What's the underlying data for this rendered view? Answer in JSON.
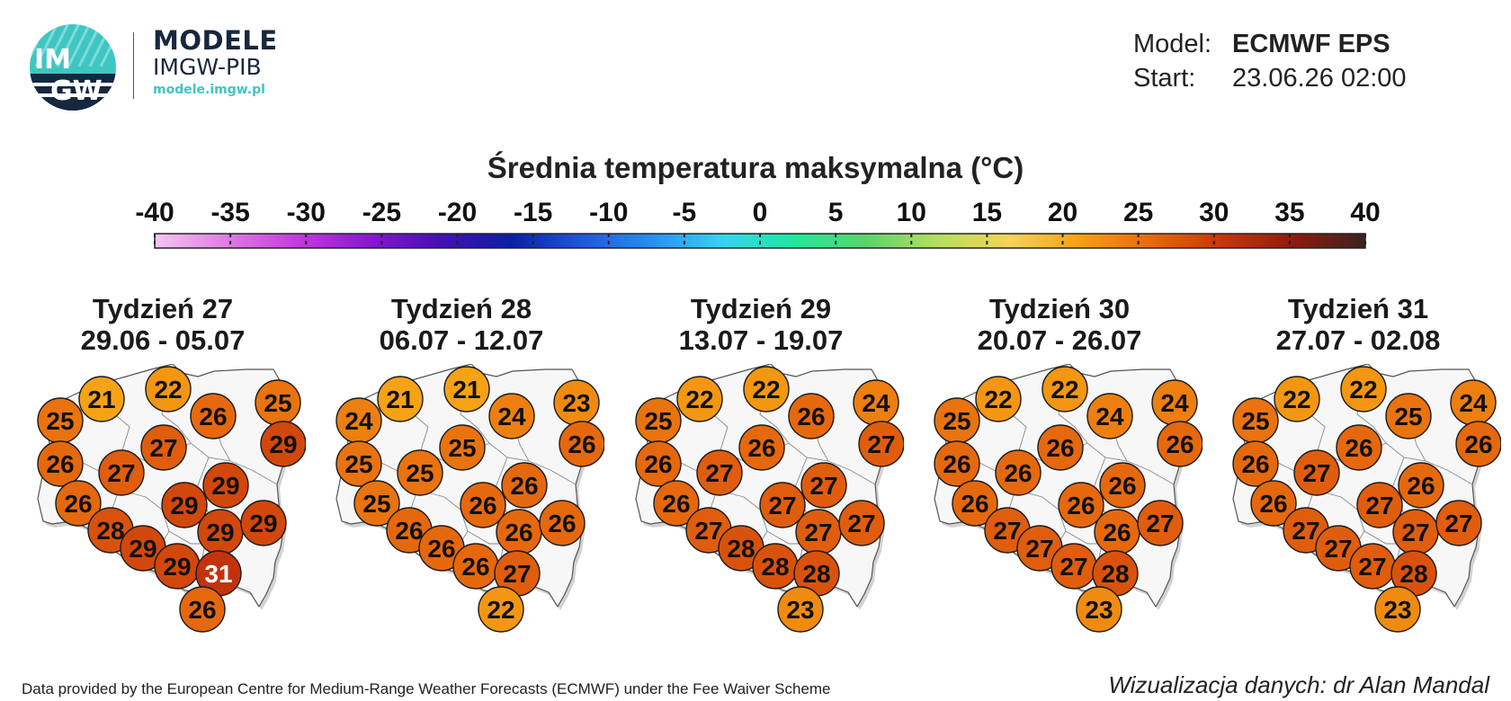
{
  "header": {
    "logo_text_top": "IM",
    "logo_text_bottom": "GW",
    "brand_title": "MODELE",
    "brand_subtitle": "IMGW-PIB",
    "brand_url": "modele.imgw.pl",
    "model_label": "Model:",
    "model_value": "ECMWF EPS",
    "start_label": "Start:",
    "start_value": "23.06.26 02:00"
  },
  "scale": {
    "title": "Średnia temperatura maksymalna (°C)",
    "ticks": [
      "-40",
      "-35",
      "-30",
      "-25",
      "-20",
      "-15",
      "-10",
      "-5",
      "0",
      "5",
      "10",
      "15",
      "20",
      "25",
      "30",
      "35",
      "40"
    ],
    "colors": [
      "#f4c6f0",
      "#e17ce5",
      "#c23cdc",
      "#8c16d2",
      "#4510b5",
      "#0a1fa6",
      "#1f57dd",
      "#2b8ff0",
      "#35d6f2",
      "#1ee89b",
      "#5cd46a",
      "#b6de62",
      "#f5d35a",
      "#f6a012",
      "#e6690d",
      "#c8350b",
      "#8b1c0e",
      "#3a231f"
    ]
  },
  "weeks": [
    {
      "title": "Tydzień 27",
      "dates": "29.06 - 05.07",
      "values": [
        25,
        21,
        22,
        26,
        25,
        29,
        26,
        27,
        27,
        26,
        29,
        29,
        28,
        29,
        29,
        29,
        29,
        31,
        26
      ]
    },
    {
      "title": "Tydzień 28",
      "dates": "06.07 - 12.07",
      "values": [
        24,
        21,
        21,
        24,
        23,
        26,
        25,
        25,
        25,
        25,
        26,
        26,
        26,
        26,
        26,
        26,
        26,
        27,
        22
      ]
    },
    {
      "title": "Tydzień 29",
      "dates": "13.07 - 19.07",
      "values": [
        25,
        22,
        22,
        26,
        24,
        27,
        26,
        27,
        26,
        26,
        27,
        27,
        27,
        28,
        27,
        27,
        28,
        28,
        23
      ]
    },
    {
      "title": "Tydzień 30",
      "dates": "20.07 - 26.07",
      "values": [
        25,
        22,
        22,
        24,
        24,
        26,
        26,
        26,
        26,
        26,
        26,
        26,
        27,
        27,
        26,
        27,
        27,
        28,
        23
      ]
    },
    {
      "title": "Tydzień 31",
      "dates": "27.07 - 02.08",
      "values": [
        25,
        22,
        22,
        25,
        24,
        26,
        26,
        27,
        26,
        26,
        27,
        26,
        27,
        27,
        27,
        27,
        27,
        28,
        23
      ]
    }
  ],
  "footer": {
    "attribution": "Data provided by the European Centre for Medium-Range Weather Forecasts (ECMWF) under the Fee Waiver Scheme",
    "credit": "Wizualizacja danych: dr Alan Mandal"
  }
}
